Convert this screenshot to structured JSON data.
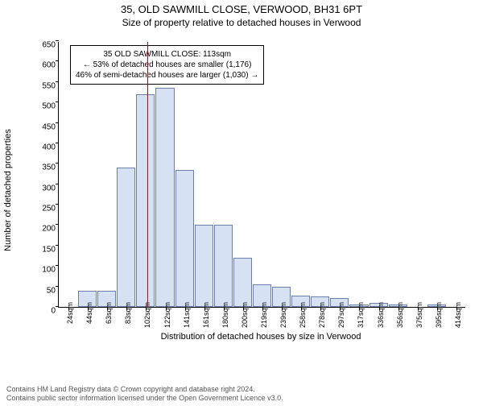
{
  "title": "35, OLD SAWMILL CLOSE, VERWOOD, BH31 6PT",
  "subtitle": "Size of property relative to detached houses in Verwood",
  "ylabel": "Number of detached properties",
  "xlabel": "Distribution of detached houses by size in Verwood",
  "footer_line1": "Contains HM Land Registry data © Crown copyright and database right 2024.",
  "footer_line2": "Contains public sector information licensed under the Open Government Licence v3.0.",
  "chart": {
    "type": "histogram",
    "ylim": [
      0,
      650
    ],
    "ytick_step": 50,
    "yticks": [
      0,
      50,
      100,
      150,
      200,
      250,
      300,
      350,
      400,
      450,
      500,
      550,
      600,
      650
    ],
    "bar_fill": "#d6e1f4",
    "bar_stroke": "#6b7fa8",
    "marker_color": "#cc0000",
    "marker_x_value": 113,
    "x_min": 24,
    "x_step": 19.5,
    "bars": [
      {
        "label": "24sqm",
        "value": 0
      },
      {
        "label": "44sqm",
        "value": 40
      },
      {
        "label": "63sqm",
        "value": 40
      },
      {
        "label": "83sqm",
        "value": 340
      },
      {
        "label": "102sqm",
        "value": 520
      },
      {
        "label": "122sqm",
        "value": 535
      },
      {
        "label": "141sqm",
        "value": 335
      },
      {
        "label": "161sqm",
        "value": 200
      },
      {
        "label": "180sqm",
        "value": 200
      },
      {
        "label": "200sqm",
        "value": 120
      },
      {
        "label": "219sqm",
        "value": 55
      },
      {
        "label": "239sqm",
        "value": 50
      },
      {
        "label": "258sqm",
        "value": 28
      },
      {
        "label": "278sqm",
        "value": 25
      },
      {
        "label": "297sqm",
        "value": 22
      },
      {
        "label": "317sqm",
        "value": 5
      },
      {
        "label": "336sqm",
        "value": 10
      },
      {
        "label": "356sqm",
        "value": 5
      },
      {
        "label": "375sqm",
        "value": 0
      },
      {
        "label": "395sqm",
        "value": 5
      },
      {
        "label": "414sqm",
        "value": 0
      }
    ]
  },
  "callout": {
    "line1": "35 OLD SAWMILL CLOSE: 113sqm",
    "line2": "← 53% of detached houses are smaller (1,176)",
    "line3": "46% of semi-detached houses are larger (1,030) →"
  }
}
